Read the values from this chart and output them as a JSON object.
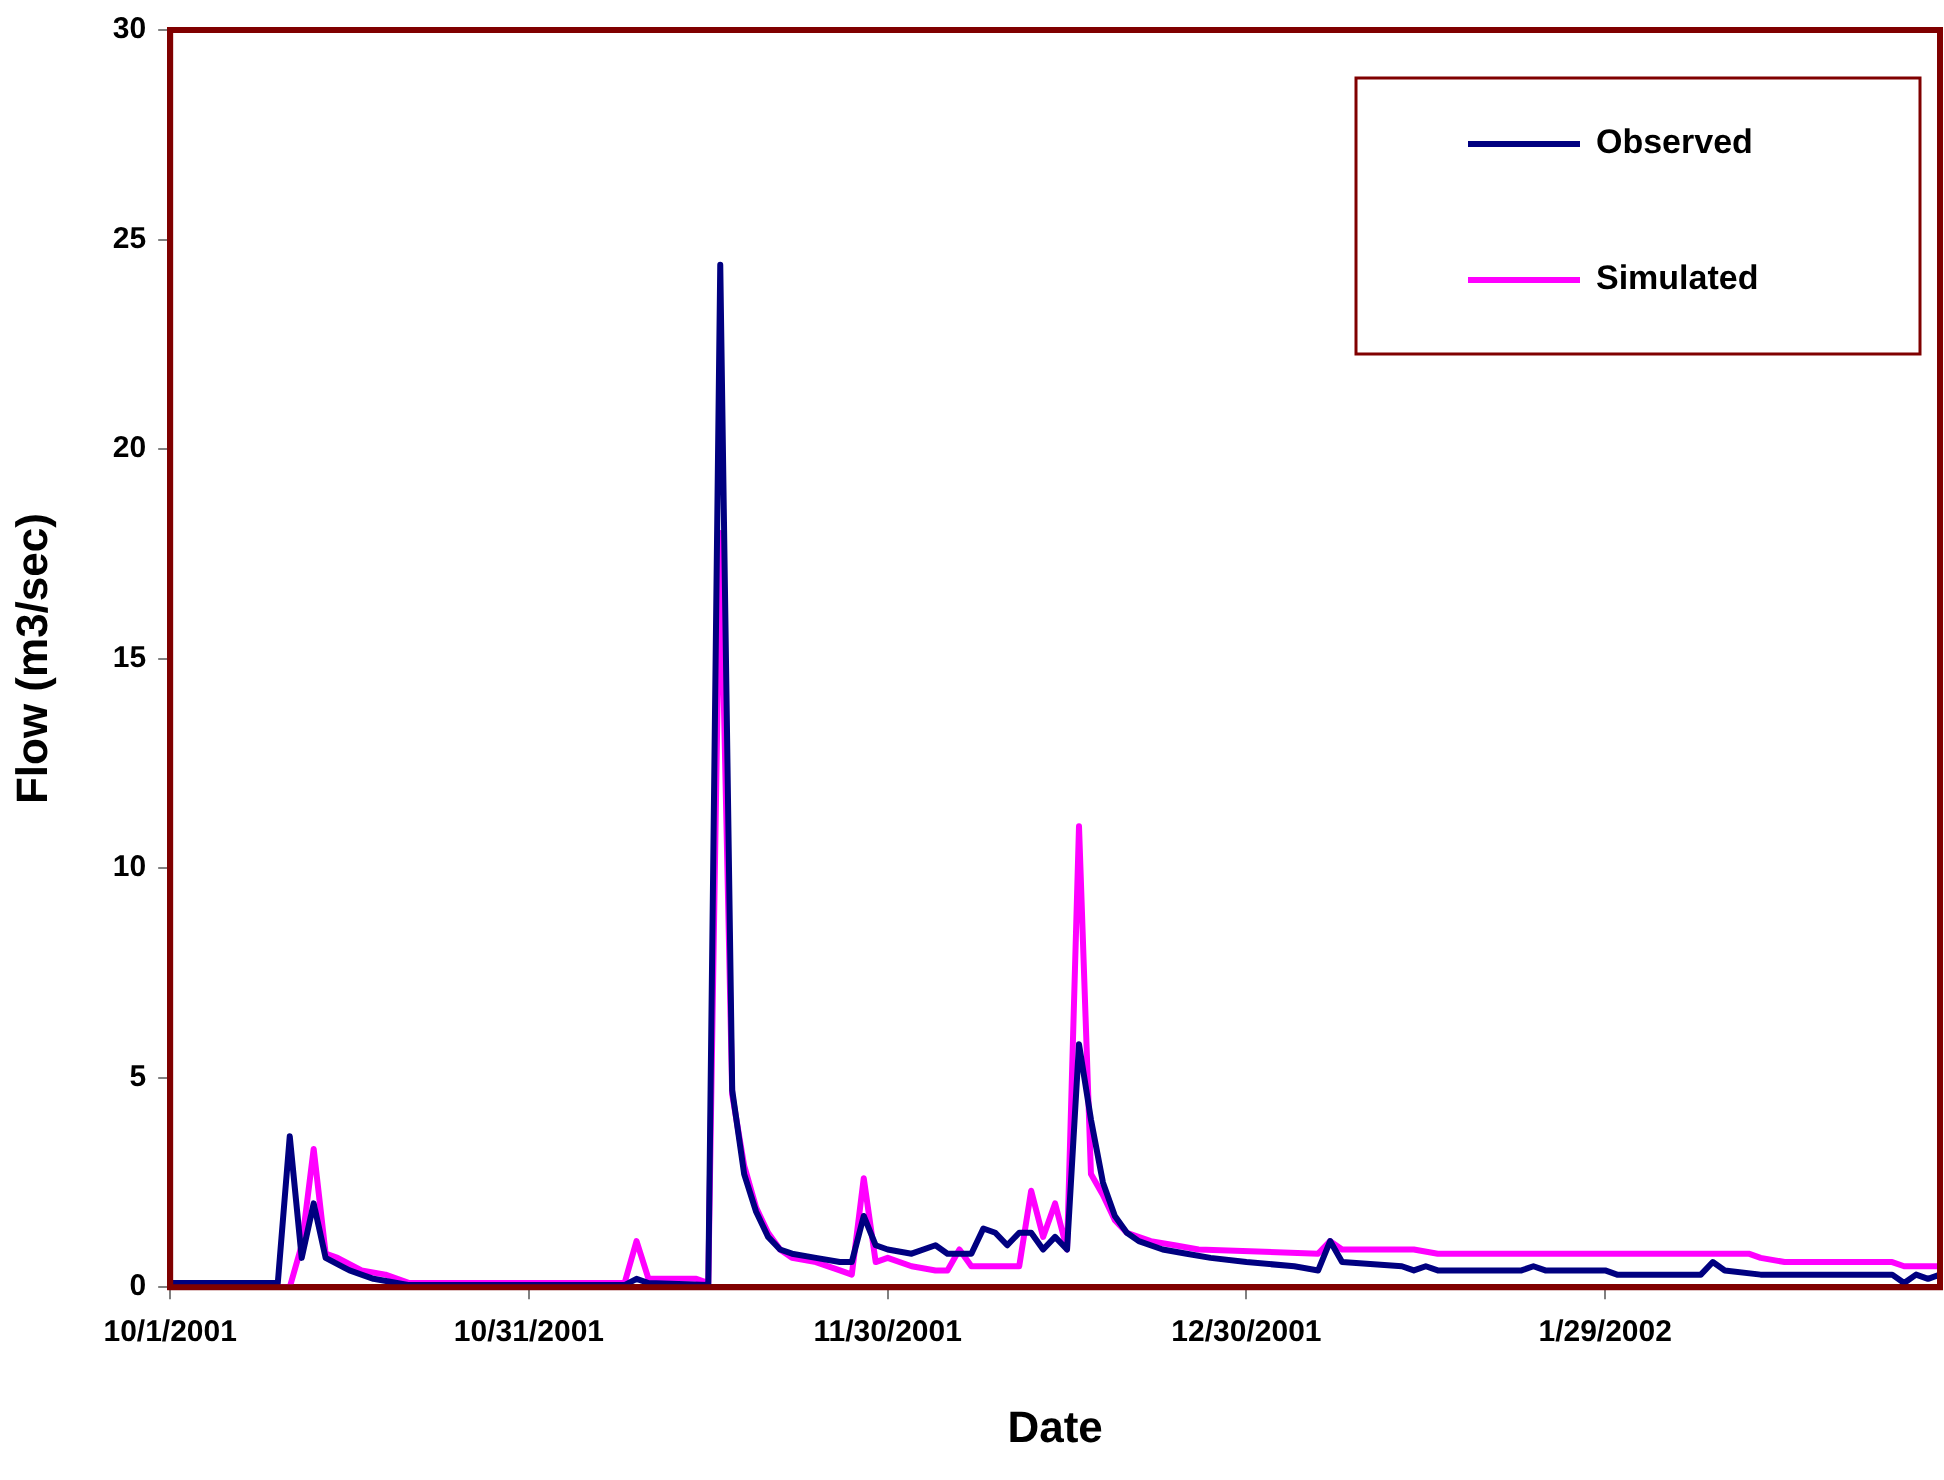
{
  "chart_data": {
    "type": "line",
    "xlabel": "Date",
    "ylabel": "Flow (m3/sec)",
    "xlim": [
      "2001-10-01",
      "2002-02-26"
    ],
    "xticks": [
      {
        "value": "2001-10-01",
        "label": "10/1/2001"
      },
      {
        "value": "2001-10-31",
        "label": "10/31/2001"
      },
      {
        "value": "2001-11-30",
        "label": "11/30/2001"
      },
      {
        "value": "2001-12-30",
        "label": "12/30/2001"
      },
      {
        "value": "2002-01-29",
        "label": "1/29/2002"
      }
    ],
    "ylim": [
      0,
      30
    ],
    "yticks": [
      0,
      5,
      10,
      15,
      20,
      25,
      30
    ],
    "grid": false,
    "legend": "top right",
    "marker": "none",
    "line_style": "solid",
    "series": [
      {
        "name": "Observed",
        "color": "#000080",
        "x": [
          "2001-10-01",
          "2001-10-10",
          "2001-10-11",
          "2001-10-12",
          "2001-10-13",
          "2001-10-14",
          "2001-10-16",
          "2001-10-18",
          "2001-10-21",
          "2001-11-08",
          "2001-11-09",
          "2001-11-10",
          "2001-11-15",
          "2001-11-16",
          "2001-11-17",
          "2001-11-18",
          "2001-11-19",
          "2001-11-20",
          "2001-11-21",
          "2001-11-22",
          "2001-11-24",
          "2001-11-26",
          "2001-11-27",
          "2001-11-28",
          "2001-11-29",
          "2001-11-30",
          "2001-12-02",
          "2001-12-04",
          "2001-12-05",
          "2001-12-07",
          "2001-12-08",
          "2001-12-09",
          "2001-12-10",
          "2001-12-11",
          "2001-12-12",
          "2001-12-13",
          "2001-12-14",
          "2001-12-15",
          "2001-12-16",
          "2001-12-17",
          "2001-12-18",
          "2001-12-19",
          "2001-12-20",
          "2001-12-21",
          "2001-12-23",
          "2001-12-25",
          "2001-12-27",
          "2001-12-30",
          "2002-01-03",
          "2002-01-05",
          "2002-01-06",
          "2002-01-07",
          "2002-01-12",
          "2002-01-13",
          "2002-01-14",
          "2002-01-15",
          "2002-01-22",
          "2002-01-23",
          "2002-01-24",
          "2002-01-29",
          "2002-01-30",
          "2002-02-06",
          "2002-02-07",
          "2002-02-08",
          "2002-02-11",
          "2002-02-22",
          "2002-02-23",
          "2002-02-24",
          "2002-02-25",
          "2002-02-26"
        ],
        "values": [
          0.1,
          0.1,
          3.6,
          0.7,
          2.0,
          0.7,
          0.4,
          0.2,
          0.05,
          0.05,
          0.2,
          0.1,
          0.05,
          24.4,
          4.7,
          2.7,
          1.8,
          1.2,
          0.9,
          0.8,
          0.7,
          0.6,
          0.6,
          1.7,
          1.0,
          0.9,
          0.8,
          1.0,
          0.8,
          0.8,
          1.4,
          1.3,
          1.0,
          1.3,
          1.3,
          0.9,
          1.2,
          0.9,
          5.8,
          4.0,
          2.5,
          1.7,
          1.3,
          1.1,
          0.9,
          0.8,
          0.7,
          0.6,
          0.5,
          0.4,
          1.1,
          0.6,
          0.5,
          0.4,
          0.5,
          0.4,
          0.4,
          0.5,
          0.4,
          0.4,
          0.3,
          0.3,
          0.6,
          0.4,
          0.3,
          0.3,
          0.1,
          0.3,
          0.2,
          0.3
        ]
      },
      {
        "name": "Simulated",
        "color": "#ff00ff",
        "x": [
          "2001-10-01",
          "2001-10-11",
          "2001-10-12",
          "2001-10-13",
          "2001-10-14",
          "2001-10-15",
          "2001-10-17",
          "2001-10-19",
          "2001-10-21",
          "2001-11-08",
          "2001-11-09",
          "2001-11-10",
          "2001-11-14",
          "2001-11-15",
          "2001-11-16",
          "2001-11-17",
          "2001-11-18",
          "2001-11-19",
          "2001-11-20",
          "2001-11-21",
          "2001-11-22",
          "2001-11-24",
          "2001-11-26",
          "2001-11-27",
          "2001-11-28",
          "2001-11-29",
          "2001-11-30",
          "2001-12-02",
          "2001-12-04",
          "2001-12-05",
          "2001-12-06",
          "2001-12-07",
          "2001-12-11",
          "2001-12-12",
          "2001-12-13",
          "2001-12-14",
          "2001-12-15",
          "2001-12-16",
          "2001-12-17",
          "2001-12-18",
          "2001-12-19",
          "2001-12-20",
          "2001-12-22",
          "2001-12-24",
          "2001-12-26",
          "2002-01-05",
          "2002-01-06",
          "2002-01-07",
          "2002-01-13",
          "2002-01-15",
          "2002-02-10",
          "2002-02-11",
          "2002-02-13",
          "2002-02-22",
          "2002-02-23",
          "2002-02-26"
        ],
        "values": [
          0,
          0,
          1.0,
          3.3,
          0.8,
          0.7,
          0.4,
          0.3,
          0.1,
          0.1,
          1.1,
          0.2,
          0.2,
          0.1,
          18.0,
          4.6,
          2.9,
          1.9,
          1.3,
          0.9,
          0.7,
          0.6,
          0.4,
          0.3,
          2.6,
          0.6,
          0.7,
          0.5,
          0.4,
          0.4,
          0.9,
          0.5,
          0.5,
          2.3,
          1.2,
          2.0,
          0.9,
          11.0,
          2.7,
          2.2,
          1.6,
          1.3,
          1.1,
          1.0,
          0.9,
          0.8,
          1.1,
          0.9,
          0.9,
          0.8,
          0.8,
          0.7,
          0.6,
          0.6,
          0.5,
          0.5
        ]
      }
    ]
  }
}
